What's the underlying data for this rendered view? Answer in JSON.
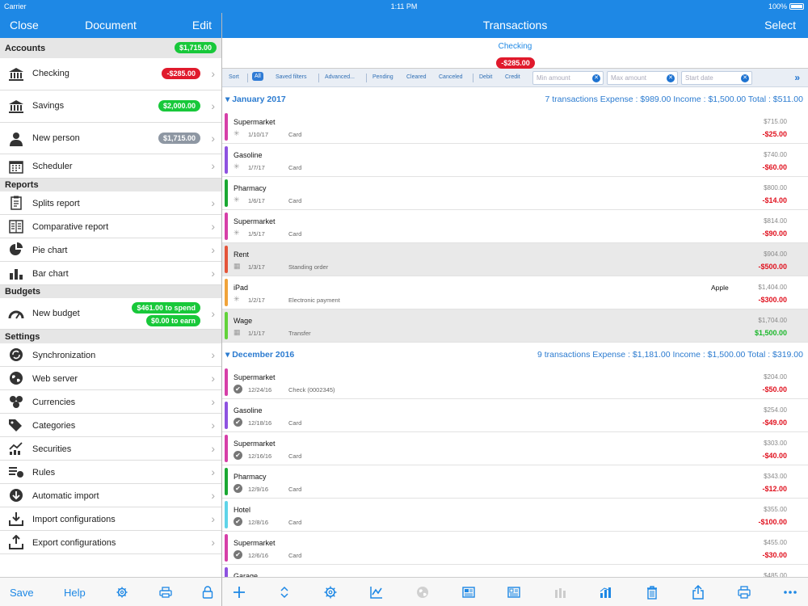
{
  "status": {
    "carrier": "Carrier",
    "time": "1:11 PM",
    "battery": "100%"
  },
  "left_nav": {
    "close": "Close",
    "title": "Document",
    "edit": "Edit"
  },
  "right_nav": {
    "title": "Transactions",
    "select": "Select"
  },
  "sidebar": {
    "accounts_header": "Accounts",
    "accounts_total": "$1,715.00",
    "accounts": [
      {
        "label": "Checking",
        "balance": "-$285.00",
        "color": "red"
      },
      {
        "label": "Savings",
        "balance": "$2,000.00",
        "color": "green"
      },
      {
        "label": "New person",
        "balance": "$1,715.00",
        "color": "grey"
      },
      {
        "label": "Scheduler",
        "balance": ""
      }
    ],
    "reports_header": "Reports",
    "reports": [
      {
        "label": "Splits report",
        "icon": "clipboard-icon"
      },
      {
        "label": "Comparative report",
        "icon": "comparative-report-icon"
      },
      {
        "label": "Pie chart",
        "icon": "pie-chart-icon"
      },
      {
        "label": "Bar chart",
        "icon": "bar-chart-icon"
      }
    ],
    "budgets_header": "Budgets",
    "budget": {
      "label": "New budget",
      "spend": "$461.00 to spend",
      "earn": "$0.00 to earn"
    },
    "settings_header": "Settings",
    "settings": [
      {
        "label": "Synchronization",
        "icon": "sync-icon"
      },
      {
        "label": "Web server",
        "icon": "globe-icon"
      },
      {
        "label": "Currencies",
        "icon": "coins-icon"
      },
      {
        "label": "Categories",
        "icon": "tags-icon"
      },
      {
        "label": "Securities",
        "icon": "securities-chart-icon"
      },
      {
        "label": "Rules",
        "icon": "rules-icon"
      },
      {
        "label": "Automatic import",
        "icon": "download-circle-icon"
      },
      {
        "label": "Import configurations",
        "icon": "import-tray-icon"
      },
      {
        "label": "Export configurations",
        "icon": "export-tray-icon"
      }
    ]
  },
  "account_header": {
    "name": "Checking",
    "balance": "-$285.00"
  },
  "filters": {
    "sort": "Sort",
    "all": "All",
    "saved": "Saved filters",
    "advanced": "Advanced...",
    "pending": "Pending",
    "cleared": "Cleared",
    "canceled": "Canceled",
    "debit": "Debit",
    "credit": "Credit",
    "min_placeholder": "Min amount",
    "max_placeholder": "Max amount",
    "date_placeholder": "Start date"
  },
  "groups": [
    {
      "title": "January 2017",
      "summary": "7 transactions    Expense : $989.00    Income : $1,500.00    Total : $511.00",
      "rows": [
        {
          "name": "Supermarket",
          "date": "1/10/17",
          "type": "Card",
          "payee": "",
          "balance": "$715.00",
          "amount": "-$25.00",
          "sign": "neg",
          "color": "#d63fa8",
          "status": "pending",
          "shade": false
        },
        {
          "name": "Gasoline",
          "date": "1/7/17",
          "type": "Card",
          "payee": "",
          "balance": "$740.00",
          "amount": "-$60.00",
          "sign": "neg",
          "color": "#8e52e0",
          "status": "pending",
          "shade": false
        },
        {
          "name": "Pharmacy",
          "date": "1/6/17",
          "type": "Card",
          "payee": "",
          "balance": "$800.00",
          "amount": "-$14.00",
          "sign": "neg",
          "color": "#1aa832",
          "status": "pending",
          "shade": false
        },
        {
          "name": "Supermarket",
          "date": "1/5/17",
          "type": "Card",
          "payee": "",
          "balance": "$814.00",
          "amount": "-$90.00",
          "sign": "neg",
          "color": "#d63fa8",
          "status": "pending",
          "shade": false
        },
        {
          "name": "Rent",
          "date": "1/3/17",
          "type": "Standing order",
          "payee": "",
          "balance": "$904.00",
          "amount": "-$500.00",
          "sign": "neg",
          "color": "#e4553a",
          "status": "scheduled",
          "shade": true
        },
        {
          "name": "iPad",
          "date": "1/2/17",
          "type": "Electronic payment",
          "payee": "Apple",
          "balance": "$1,404.00",
          "amount": "-$300.00",
          "sign": "neg",
          "color": "#f0a33a",
          "status": "pending",
          "shade": false
        },
        {
          "name": "Wage",
          "date": "1/1/17",
          "type": "Transfer",
          "payee": "",
          "balance": "$1,704.00",
          "amount": "$1,500.00",
          "sign": "pos",
          "color": "#62d23a",
          "status": "scheduled",
          "shade": true
        }
      ]
    },
    {
      "title": "December 2016",
      "summary": "9 transactions    Expense : $1,181.00    Income : $1,500.00    Total : $319.00",
      "rows": [
        {
          "name": "Supermarket",
          "date": "12/24/16",
          "type": "Check (0002345)",
          "payee": "",
          "balance": "$204.00",
          "amount": "-$50.00",
          "sign": "neg",
          "color": "#d63fa8",
          "status": "cleared",
          "shade": false
        },
        {
          "name": "Gasoline",
          "date": "12/18/16",
          "type": "Card",
          "payee": "",
          "balance": "$254.00",
          "amount": "-$49.00",
          "sign": "neg",
          "color": "#8e52e0",
          "status": "cleared",
          "shade": false
        },
        {
          "name": "Supermarket",
          "date": "12/16/16",
          "type": "Card",
          "payee": "",
          "balance": "$303.00",
          "amount": "-$40.00",
          "sign": "neg",
          "color": "#d63fa8",
          "status": "cleared",
          "shade": false
        },
        {
          "name": "Pharmacy",
          "date": "12/9/16",
          "type": "Card",
          "payee": "",
          "balance": "$343.00",
          "amount": "-$12.00",
          "sign": "neg",
          "color": "#1aa832",
          "status": "cleared",
          "shade": false
        },
        {
          "name": "Hotel",
          "date": "12/8/16",
          "type": "Card",
          "payee": "",
          "balance": "$355.00",
          "amount": "-$100.00",
          "sign": "neg",
          "color": "#5fd4e8",
          "status": "cleared",
          "shade": false
        },
        {
          "name": "Supermarket",
          "date": "12/6/16",
          "type": "Card",
          "payee": "",
          "balance": "$455.00",
          "amount": "-$30.00",
          "sign": "neg",
          "color": "#d63fa8",
          "status": "cleared",
          "shade": false
        },
        {
          "name": "Garage",
          "date": "",
          "type": "",
          "payee": "",
          "balance": "$485.00",
          "amount": "",
          "sign": "neg",
          "color": "#8e52e0",
          "status": "cleared",
          "shade": false
        }
      ]
    }
  ],
  "left_toolbar": {
    "save": "Save",
    "help": "Help"
  }
}
